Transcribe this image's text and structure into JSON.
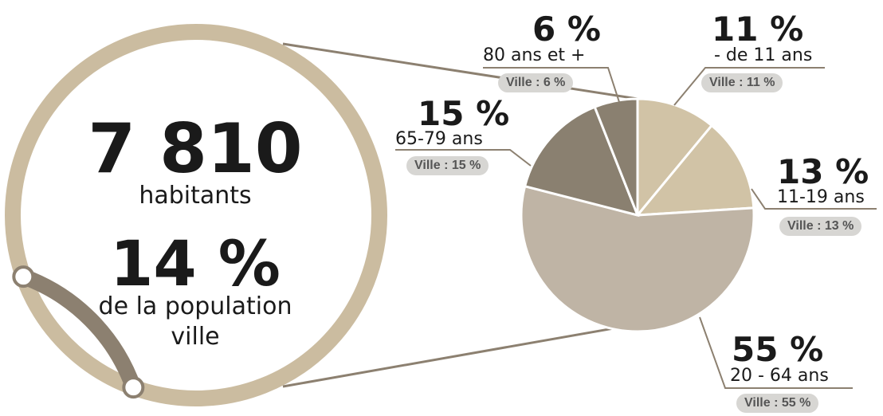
{
  "summary": {
    "population": "7 810",
    "population_label": "habitants",
    "share": "14 %",
    "share_label_line1": "de la population",
    "share_label_line2": "ville",
    "ring_fraction": 0.14
  },
  "colors": {
    "ring": "#cbbca0",
    "ring_share": "#8c8070",
    "connector": "#8c8070",
    "badge_bg": "#d7d6d3",
    "badge_text": "#555555"
  },
  "chart_data": {
    "type": "pie",
    "title": "",
    "slices": [
      {
        "label": "- de 11 ans",
        "value": 11,
        "pct_text": "11 %",
        "ville": "Ville : 11 %",
        "color": "#d1c3a6"
      },
      {
        "label": "11-19 ans",
        "value": 13,
        "pct_text": "13 %",
        "ville": "Ville : 13 %",
        "color": "#d1c3a6"
      },
      {
        "label": "20 - 64 ans",
        "value": 55,
        "pct_text": "55 %",
        "ville": "Ville : 55 %",
        "color": "#bfb4a5"
      },
      {
        "label": "65-79 ans",
        "value": 15,
        "pct_text": "15 %",
        "ville": "Ville : 15 %",
        "color": "#8a8070"
      },
      {
        "label": "80 ans et +",
        "value": 6,
        "pct_text": "6 %",
        "ville": "Ville : 6 %",
        "color": "#8a8070"
      }
    ]
  }
}
